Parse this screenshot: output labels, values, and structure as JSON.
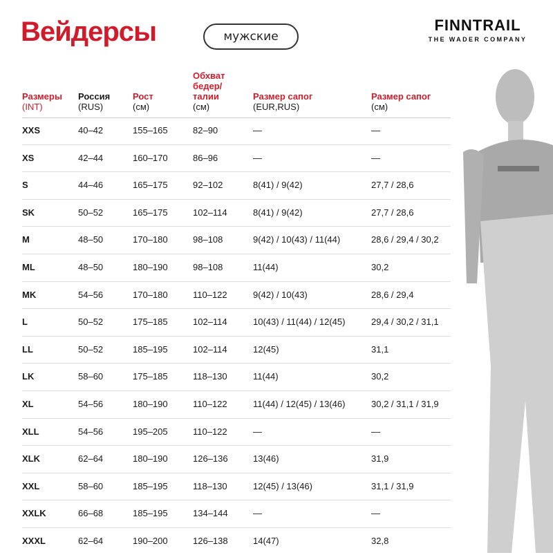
{
  "title": "Вейдерсы",
  "badge": "мужские",
  "logo": {
    "brand": "FINNTRAIL",
    "tagline": "THE WADER COMPANY"
  },
  "colors": {
    "accent": "#d01c2a",
    "text": "#1a1a1a"
  },
  "headers": [
    {
      "line1": "Размеры",
      "line2": "(INT)",
      "color": "red"
    },
    {
      "line1": "Россия",
      "line2": "(RUS)",
      "color": "black"
    },
    {
      "line1": "Рост",
      "line2": "(см)",
      "color": "red"
    },
    {
      "line1": "Обхват бедер/ талии",
      "line2": "(см)",
      "color": "red"
    },
    {
      "line1": "Размер сапог",
      "line2": "(EUR,RUS)",
      "color": "red"
    },
    {
      "line1": "Размер сапог",
      "line2": "(см)",
      "color": "red"
    }
  ],
  "rows": [
    [
      "XXS",
      "40–42",
      "155–165",
      "82–90",
      "—",
      "—"
    ],
    [
      "XS",
      "42–44",
      "160–170",
      "86–96",
      "—",
      "—"
    ],
    [
      "S",
      "44–46",
      "165–175",
      "92–102",
      "8(41) / 9(42)",
      "27,7 / 28,6"
    ],
    [
      "SK",
      "50–52",
      "165–175",
      "102–114",
      "8(41) / 9(42)",
      "27,7 / 28,6"
    ],
    [
      "M",
      "48–50",
      "170–180",
      "98–108",
      "9(42) / 10(43) / 11(44)",
      "28,6 / 29,4 / 30,2"
    ],
    [
      "ML",
      "48–50",
      "180–190",
      "98–108",
      "11(44)",
      "30,2"
    ],
    [
      "MK",
      "54–56",
      "170–180",
      "110–122",
      "9(42) / 10(43)",
      "28,6 / 29,4"
    ],
    [
      "L",
      "50–52",
      "175–185",
      "102–114",
      "10(43) / 11(44) / 12(45)",
      "29,4 / 30,2 / 31,1"
    ],
    [
      "LL",
      "50–52",
      "185–195",
      "102–114",
      "12(45)",
      "31,1"
    ],
    [
      "LK",
      "58–60",
      "175–185",
      "118–130",
      "11(44)",
      "30,2"
    ],
    [
      "XL",
      "54–56",
      "180–190",
      "110–122",
      "11(44) / 12(45) / 13(46)",
      "30,2 / 31,1 / 31,9"
    ],
    [
      "XLL",
      "54–56",
      "195–205",
      "110–122",
      "—",
      "—"
    ],
    [
      "XLK",
      "62–64",
      "180–190",
      "126–136",
      "13(46)",
      "31,9"
    ],
    [
      "XXL",
      "58–60",
      "185–195",
      "118–130",
      "12(45) / 13(46)",
      "31,1 / 31,9"
    ],
    [
      "XXLK",
      "66–68",
      "185–195",
      "134–144",
      "—",
      "—"
    ],
    [
      "XXXL",
      "62–64",
      "190–200",
      "126–138",
      "14(47)",
      "32,8"
    ]
  ]
}
